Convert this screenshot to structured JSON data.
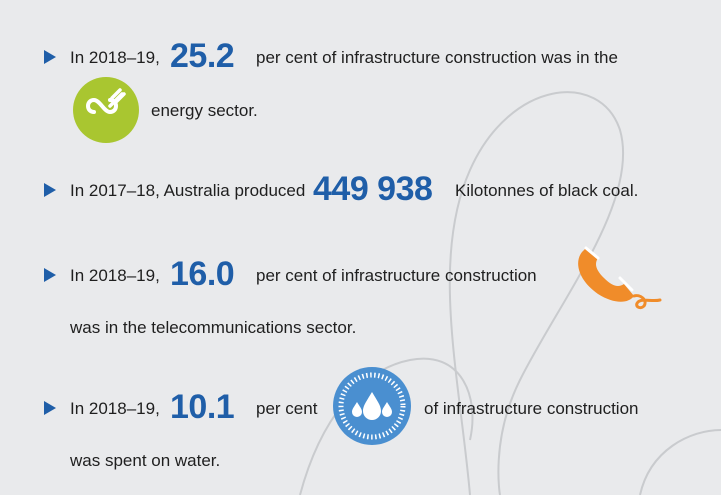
{
  "colors": {
    "accent_blue": "#1f5ea8",
    "energy_green": "#a9c630",
    "telecom_orange": "#f08c2a",
    "water_blue": "#4a8fd0",
    "background": "#e9eaec"
  },
  "facts": [
    {
      "prefix": "In 2018–19,",
      "value": "25.2",
      "suffix": "per cent of infrastructure construction was in the",
      "line2": "energy sector.",
      "icon": "energy-plug-icon"
    },
    {
      "prefix": "In 2017–18, Australia produced",
      "value": "449 938",
      "suffix": "Kilotonnes of black coal.",
      "icon": ""
    },
    {
      "prefix": "In 2018–19,",
      "value": "16.0",
      "suffix": "per cent of infrastructure construction",
      "line2": "was in the telecommunications sector.",
      "icon": "telephone-handset-icon"
    },
    {
      "prefix": "In 2018–19,",
      "value": "10.1",
      "suffix": "per cent",
      "suffix2": "of infrastructure construction",
      "line2": "was spent on water.",
      "icon": "water-drops-icon"
    }
  ]
}
